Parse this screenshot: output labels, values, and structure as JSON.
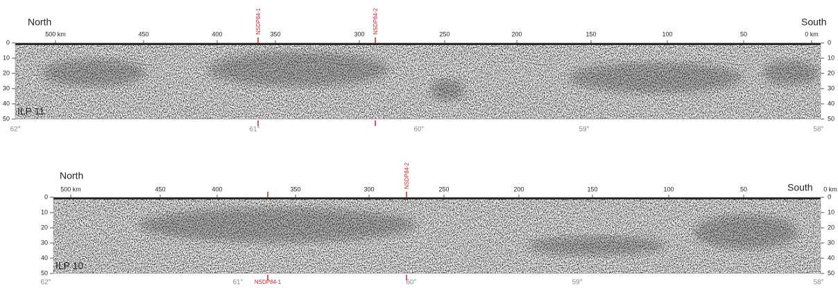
{
  "panels": [
    {
      "label": "ILP 11",
      "north": "North",
      "south": "South",
      "km_ticks": [
        "500 km",
        "450",
        "400",
        "350",
        "300",
        "250",
        "200",
        "150",
        "100",
        "50",
        "0 km"
      ],
      "depth_ticks": [
        "0",
        "10",
        "20",
        "30",
        "40",
        "50"
      ],
      "lat_ticks": [
        "62°",
        "61°",
        "60°",
        "59°",
        "58°"
      ],
      "wells": [
        "NSDP84-1",
        "NSDP84-2"
      ]
    },
    {
      "label": "ILP 10",
      "north": "North",
      "south": "South",
      "km_ticks": [
        "500 km",
        "450",
        "400",
        "350",
        "300",
        "250",
        "200",
        "150",
        "100",
        "50",
        "0 km"
      ],
      "depth_ticks": [
        "0",
        "10",
        "20",
        "30",
        "40",
        "50"
      ],
      "lat_ticks": [
        "62°",
        "61°",
        "60°",
        "59°",
        "58°"
      ],
      "wells": [
        "NSDP84-1",
        "NSDP84-2"
      ]
    }
  ]
}
